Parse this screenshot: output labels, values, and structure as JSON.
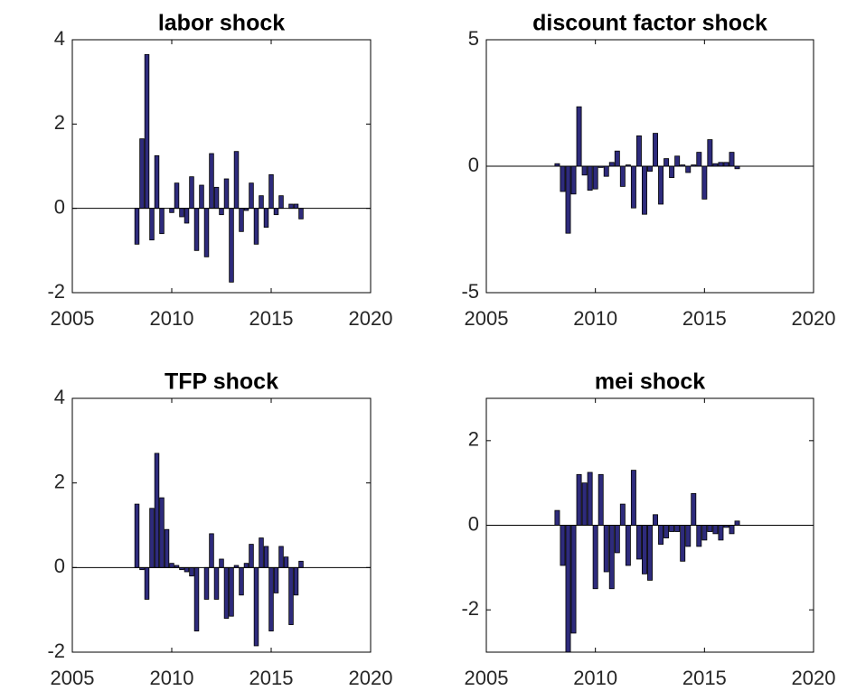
{
  "chart_data": [
    {
      "type": "bar",
      "title": "labor shock",
      "color": "#2e2b7c",
      "x": [
        2008.25,
        2008.5,
        2008.75,
        2009,
        2009.25,
        2009.5,
        2009.75,
        2010,
        2010.25,
        2010.5,
        2010.75,
        2011,
        2011.25,
        2011.5,
        2011.75,
        2012,
        2012.25,
        2012.5,
        2012.75,
        2013,
        2013.25,
        2013.5,
        2013.75,
        2014,
        2014.25,
        2014.5,
        2014.75,
        2015,
        2015.25,
        2015.5,
        2015.75,
        2016,
        2016.25,
        2016.5
      ],
      "values": [
        -0.85,
        1.65,
        3.65,
        -0.75,
        1.25,
        -0.6,
        0,
        -0.1,
        0.6,
        -0.2,
        -0.35,
        0.75,
        -1.0,
        0.55,
        -1.15,
        1.3,
        0.5,
        -0.15,
        0.7,
        -1.75,
        1.35,
        -0.55,
        -0.05,
        0.6,
        -0.85,
        0.3,
        -0.45,
        0.8,
        -0.15,
        0.3,
        0,
        0.1,
        0.1,
        -0.25
      ],
      "xlim": [
        2005,
        2020
      ],
      "xticks": [
        2005,
        2010,
        2015,
        2020
      ],
      "ylim": [
        -2,
        4
      ],
      "yticks": [
        -2,
        0,
        2,
        4
      ]
    },
    {
      "type": "bar",
      "title": "discount factor shock",
      "color": "#2e2b7c",
      "x": [
        2008.25,
        2008.5,
        2008.75,
        2009,
        2009.25,
        2009.5,
        2009.75,
        2010,
        2010.25,
        2010.5,
        2010.75,
        2011,
        2011.25,
        2011.5,
        2011.75,
        2012,
        2012.25,
        2012.5,
        2012.75,
        2013,
        2013.25,
        2013.5,
        2013.75,
        2014,
        2014.25,
        2014.5,
        2014.75,
        2015,
        2015.25,
        2015.5,
        2015.75,
        2016,
        2016.25,
        2016.5
      ],
      "values": [
        0.1,
        -1.0,
        -2.65,
        -1.1,
        2.35,
        -0.35,
        -0.95,
        -0.9,
        -0.05,
        -0.4,
        0.15,
        0.6,
        -0.8,
        0.05,
        -1.65,
        1.2,
        -1.9,
        -0.2,
        1.3,
        -1.5,
        0.3,
        -0.45,
        0.4,
        0.05,
        -0.25,
        0.05,
        0.55,
        -1.3,
        1.05,
        0.1,
        0.15,
        0.15,
        0.55,
        -0.1
      ],
      "xlim": [
        2005,
        2020
      ],
      "xticks": [
        2005,
        2010,
        2015,
        2020
      ],
      "ylim": [
        -5,
        5
      ],
      "yticks": [
        -5,
        0,
        5
      ]
    },
    {
      "type": "bar",
      "title": "TFP shock",
      "color": "#2e2b7c",
      "x": [
        2008.25,
        2008.5,
        2008.75,
        2009,
        2009.25,
        2009.5,
        2009.75,
        2010,
        2010.25,
        2010.5,
        2010.75,
        2011,
        2011.25,
        2011.5,
        2011.75,
        2012,
        2012.25,
        2012.5,
        2012.75,
        2013,
        2013.25,
        2013.5,
        2013.75,
        2014,
        2014.25,
        2014.5,
        2014.75,
        2015,
        2015.25,
        2015.5,
        2015.75,
        2016,
        2016.25,
        2016.5
      ],
      "values": [
        1.5,
        -0.05,
        -0.75,
        1.4,
        2.7,
        1.65,
        0.9,
        0.1,
        0.05,
        -0.05,
        -0.1,
        -0.2,
        -1.5,
        0,
        -0.75,
        0.8,
        -0.75,
        0.2,
        -1.2,
        -1.15,
        0.05,
        -0.65,
        0.1,
        0.55,
        -1.85,
        0.7,
        0.5,
        -1.5,
        -0.6,
        0.5,
        0.25,
        -1.35,
        -0.65,
        0.15
      ],
      "xlim": [
        2005,
        2020
      ],
      "xticks": [
        2005,
        2010,
        2015,
        2020
      ],
      "ylim": [
        -2,
        4
      ],
      "yticks": [
        -2,
        0,
        2,
        4
      ]
    },
    {
      "type": "bar",
      "title": "mei shock",
      "color": "#2e2b7c",
      "x": [
        2008.25,
        2008.5,
        2008.75,
        2009,
        2009.25,
        2009.5,
        2009.75,
        2010,
        2010.25,
        2010.5,
        2010.75,
        2011,
        2011.25,
        2011.5,
        2011.75,
        2012,
        2012.25,
        2012.5,
        2012.75,
        2013,
        2013.25,
        2013.5,
        2013.75,
        2014,
        2014.25,
        2014.5,
        2014.75,
        2015,
        2015.25,
        2015.5,
        2015.75,
        2016,
        2016.25,
        2016.5
      ],
      "values": [
        0.35,
        -0.95,
        -3.0,
        -2.55,
        1.2,
        1.0,
        1.25,
        -1.5,
        1.2,
        -1.1,
        -1.5,
        -0.65,
        0.5,
        -0.95,
        1.3,
        -0.8,
        -1.15,
        -1.3,
        0.25,
        -0.45,
        -0.3,
        -0.15,
        -0.15,
        -0.85,
        -0.5,
        0.75,
        -0.5,
        -0.35,
        -0.15,
        -0.2,
        -0.35,
        -0.05,
        -0.2,
        0.1
      ],
      "xlim": [
        2005,
        2020
      ],
      "xticks": [
        2005,
        2010,
        2015,
        2020
      ],
      "ylim": [
        -3,
        3
      ],
      "yticks": [
        -2,
        0,
        2
      ]
    }
  ]
}
